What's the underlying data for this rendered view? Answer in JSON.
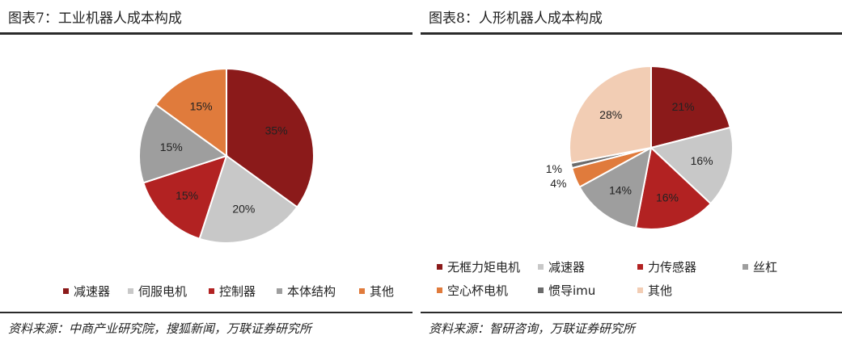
{
  "left": {
    "figure_title": "图表7：工业机器人成本构成",
    "source": "资料来源：中商产业研究院，搜狐新闻，万联证券研究所"
  },
  "right": {
    "figure_title": "图表8：人形机器人成本构成",
    "source": "资料来源：智研咨询，万联证券研究所"
  },
  "chart_data": [
    {
      "type": "pie",
      "title": "图表7：工业机器人成本构成",
      "labels": [
        "减速器",
        "伺服电机",
        "控制器",
        "本体结构",
        "其他"
      ],
      "values": [
        35,
        20,
        15,
        15,
        15
      ],
      "value_labels": [
        "35%",
        "20%",
        "15%",
        "15%",
        "15%"
      ],
      "colors": [
        "#8b1a1a",
        "#c8c8c8",
        "#b22222",
        "#9e9e9e",
        "#e07b3c"
      ],
      "legend_position": "bottom",
      "start": "top, clockwise"
    },
    {
      "type": "pie",
      "title": "图表8：人形机器人成本构成",
      "labels": [
        "无框力矩电机",
        "减速器",
        "力传感器",
        "丝杠",
        "空心杯电机",
        "惯导imu",
        "其他"
      ],
      "values": [
        21,
        16,
        16,
        14,
        4,
        1,
        28
      ],
      "value_labels": [
        "21%",
        "16%",
        "16%",
        "14%",
        "4%",
        "1%",
        "28%"
      ],
      "colors": [
        "#8b1a1a",
        "#c8c8c8",
        "#b22222",
        "#9e9e9e",
        "#e07b3c",
        "#6b6b6b",
        "#f2cdb4"
      ],
      "legend_position": "bottom",
      "start": "top, clockwise"
    }
  ]
}
